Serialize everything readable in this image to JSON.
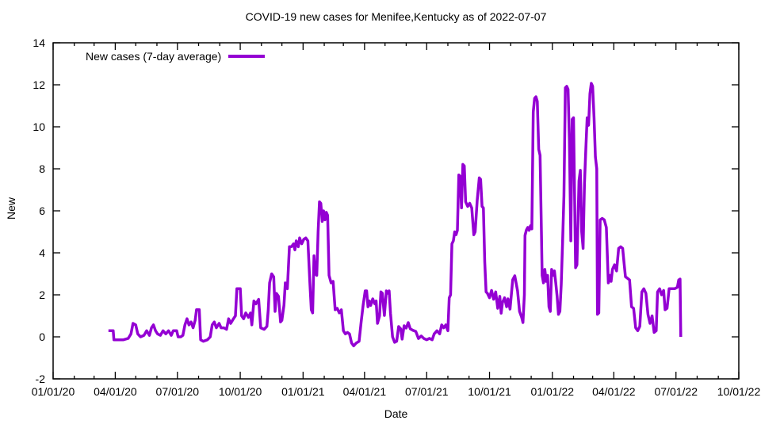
{
  "chart": {
    "title": "COVID-19 new cases for Menifee,Kentucky as of 2022-07-07",
    "xlabel": "Date",
    "ylabel": "New",
    "legend_label": "New cases (7-day average)"
  },
  "chart_data": {
    "type": "line",
    "title": "COVID-19 new cases for Menifee,Kentucky as of 2022-07-07",
    "xlabel": "Date",
    "ylabel": "New",
    "legend_position": "top-left",
    "grid": false,
    "line_color": "#9400d3",
    "x_start_date": "2020-01-01",
    "x_end_date": "2022-10-01",
    "x_tick_labels": [
      "01/01/20",
      "04/01/20",
      "07/01/20",
      "10/01/20",
      "01/01/21",
      "04/01/21",
      "07/01/21",
      "10/01/21",
      "01/01/22",
      "04/01/22",
      "07/01/22",
      "10/01/22"
    ],
    "x_minor_tick_interval": "1 month",
    "y_ticks": [
      -2,
      0,
      2,
      4,
      6,
      8,
      10,
      12,
      14
    ],
    "ylim": [
      -2,
      14
    ],
    "series": [
      {
        "name": "New cases (7-day average)",
        "x_unit": "days since 2020-01-01",
        "points": [
          [
            81,
            0.29
          ],
          [
            88,
            0.29
          ],
          [
            89,
            -0.14
          ],
          [
            96,
            -0.14
          ],
          [
            103,
            -0.14
          ],
          [
            110,
            -0.07
          ],
          [
            114,
            0.14
          ],
          [
            117,
            0.64
          ],
          [
            121,
            0.57
          ],
          [
            124,
            0.14
          ],
          [
            128,
            0.0
          ],
          [
            133,
            0.07
          ],
          [
            137,
            0.29
          ],
          [
            141,
            0.07
          ],
          [
            144,
            0.43
          ],
          [
            147,
            0.57
          ],
          [
            150,
            0.29
          ],
          [
            153,
            0.14
          ],
          [
            157,
            0.07
          ],
          [
            161,
            0.29
          ],
          [
            165,
            0.14
          ],
          [
            169,
            0.29
          ],
          [
            173,
            0.07
          ],
          [
            176,
            0.29
          ],
          [
            181,
            0.29
          ],
          [
            183,
            0.0
          ],
          [
            187,
            0.0
          ],
          [
            190,
            0.07
          ],
          [
            193,
            0.57
          ],
          [
            196,
            0.86
          ],
          [
            199,
            0.57
          ],
          [
            202,
            0.71
          ],
          [
            205,
            0.43
          ],
          [
            208,
            0.79
          ],
          [
            210,
            1.29
          ],
          [
            214,
            1.29
          ],
          [
            216,
            -0.14
          ],
          [
            220,
            -0.21
          ],
          [
            226,
            -0.14
          ],
          [
            230,
            0.0
          ],
          [
            233,
            0.57
          ],
          [
            236,
            0.71
          ],
          [
            239,
            0.43
          ],
          [
            243,
            0.64
          ],
          [
            246,
            0.43
          ],
          [
            250,
            0.43
          ],
          [
            254,
            0.36
          ],
          [
            257,
            0.86
          ],
          [
            260,
            0.64
          ],
          [
            264,
            0.86
          ],
          [
            267,
            1.0
          ],
          [
            269,
            2.29
          ],
          [
            274,
            2.29
          ],
          [
            276,
            1.0
          ],
          [
            279,
            0.86
          ],
          [
            282,
            1.14
          ],
          [
            286,
            0.93
          ],
          [
            289,
            1.14
          ],
          [
            291,
            0.57
          ],
          [
            294,
            1.71
          ],
          [
            297,
            1.57
          ],
          [
            301,
            1.79
          ],
          [
            304,
            0.43
          ],
          [
            309,
            0.36
          ],
          [
            313,
            0.5
          ],
          [
            315,
            1.29
          ],
          [
            317,
            2.57
          ],
          [
            320,
            3.0
          ],
          [
            323,
            2.86
          ],
          [
            325,
            1.21
          ],
          [
            327,
            2.07
          ],
          [
            330,
            1.93
          ],
          [
            333,
            0.71
          ],
          [
            335,
            0.79
          ],
          [
            338,
            1.5
          ],
          [
            340,
            2.57
          ],
          [
            343,
            2.29
          ],
          [
            346,
            4.29
          ],
          [
            349,
            4.29
          ],
          [
            352,
            4.43
          ],
          [
            354,
            4.14
          ],
          [
            356,
            4.57
          ],
          [
            359,
            4.29
          ],
          [
            361,
            4.71
          ],
          [
            364,
            4.43
          ],
          [
            367,
            4.64
          ],
          [
            370,
            4.71
          ],
          [
            373,
            4.57
          ],
          [
            376,
            2.57
          ],
          [
            378,
            1.29
          ],
          [
            380,
            1.14
          ],
          [
            382,
            3.86
          ],
          [
            384,
            3.0
          ],
          [
            386,
            2.93
          ],
          [
            388,
            5.0
          ],
          [
            390,
            6.43
          ],
          [
            392,
            6.36
          ],
          [
            394,
            5.5
          ],
          [
            396,
            6.0
          ],
          [
            398,
            5.57
          ],
          [
            400,
            5.93
          ],
          [
            402,
            5.79
          ],
          [
            404,
            2.93
          ],
          [
            407,
            2.57
          ],
          [
            410,
            2.64
          ],
          [
            413,
            1.29
          ],
          [
            416,
            1.36
          ],
          [
            419,
            1.14
          ],
          [
            422,
            1.29
          ],
          [
            425,
            0.29
          ],
          [
            428,
            0.14
          ],
          [
            431,
            0.21
          ],
          [
            434,
            0.14
          ],
          [
            437,
            -0.29
          ],
          [
            440,
            -0.43
          ],
          [
            444,
            -0.29
          ],
          [
            448,
            -0.21
          ],
          [
            451,
            0.71
          ],
          [
            454,
            1.51
          ],
          [
            457,
            2.19
          ],
          [
            459,
            2.19
          ],
          [
            461,
            1.43
          ],
          [
            463,
            1.71
          ],
          [
            465,
            1.5
          ],
          [
            468,
            1.81
          ],
          [
            471,
            1.57
          ],
          [
            473,
            1.71
          ],
          [
            475,
            0.64
          ],
          [
            478,
            1.0
          ],
          [
            480,
            2.14
          ],
          [
            482,
            2.08
          ],
          [
            485,
            1.02
          ],
          [
            488,
            2.19
          ],
          [
            490,
            2.08
          ],
          [
            492,
            2.19
          ],
          [
            494,
            1.13
          ],
          [
            497,
            0.0
          ],
          [
            500,
            -0.26
          ],
          [
            503,
            -0.21
          ],
          [
            506,
            0.49
          ],
          [
            509,
            0.38
          ],
          [
            511,
            -0.11
          ],
          [
            514,
            0.53
          ],
          [
            517,
            0.42
          ],
          [
            520,
            0.68
          ],
          [
            523,
            0.38
          ],
          [
            527,
            0.31
          ],
          [
            531,
            0.26
          ],
          [
            535,
            -0.08
          ],
          [
            539,
            0.04
          ],
          [
            543,
            -0.08
          ],
          [
            547,
            -0.14
          ],
          [
            551,
            -0.07
          ],
          [
            555,
            -0.14
          ],
          [
            558,
            0.14
          ],
          [
            562,
            0.29
          ],
          [
            566,
            0.14
          ],
          [
            569,
            0.57
          ],
          [
            572,
            0.43
          ],
          [
            575,
            0.57
          ],
          [
            578,
            0.29
          ],
          [
            580,
            1.86
          ],
          [
            582,
            2.0
          ],
          [
            584,
            4.43
          ],
          [
            586,
            4.57
          ],
          [
            588,
            5.0
          ],
          [
            590,
            4.86
          ],
          [
            592,
            5.07
          ],
          [
            594,
            7.71
          ],
          [
            596,
            7.64
          ],
          [
            598,
            6.14
          ],
          [
            600,
            8.21
          ],
          [
            602,
            8.14
          ],
          [
            604,
            6.43
          ],
          [
            607,
            6.21
          ],
          [
            610,
            6.36
          ],
          [
            613,
            6.14
          ],
          [
            616,
            4.86
          ],
          [
            618,
            5.0
          ],
          [
            621,
            6.5
          ],
          [
            624,
            7.57
          ],
          [
            626,
            7.5
          ],
          [
            628,
            6.21
          ],
          [
            630,
            6.14
          ],
          [
            632,
            3.57
          ],
          [
            634,
            2.14
          ],
          [
            636,
            2.07
          ],
          [
            639,
            1.86
          ],
          [
            642,
            2.21
          ],
          [
            645,
            1.79
          ],
          [
            648,
            2.14
          ],
          [
            651,
            1.36
          ],
          [
            654,
            1.93
          ],
          [
            656,
            1.13
          ],
          [
            658,
            1.64
          ],
          [
            661,
            1.86
          ],
          [
            664,
            1.43
          ],
          [
            666,
            1.81
          ],
          [
            669,
            1.32
          ],
          [
            673,
            2.72
          ],
          [
            676,
            2.91
          ],
          [
            680,
            2.19
          ],
          [
            683,
            1.21
          ],
          [
            686,
            0.94
          ],
          [
            688,
            0.68
          ],
          [
            690,
            2.0
          ],
          [
            691,
            4.83
          ],
          [
            693,
            5.09
          ],
          [
            695,
            5.21
          ],
          [
            697,
            5.07
          ],
          [
            699,
            5.29
          ],
          [
            701,
            5.14
          ],
          [
            703,
            10.71
          ],
          [
            705,
            11.36
          ],
          [
            707,
            11.43
          ],
          [
            709,
            11.21
          ],
          [
            711,
            8.93
          ],
          [
            713,
            8.64
          ],
          [
            715,
            5.0
          ],
          [
            716,
            2.93
          ],
          [
            718,
            2.57
          ],
          [
            720,
            3.21
          ],
          [
            722,
            2.64
          ],
          [
            724,
            2.93
          ],
          [
            726,
            1.43
          ],
          [
            728,
            1.21
          ],
          [
            730,
            3.21
          ],
          [
            732,
            2.93
          ],
          [
            734,
            3.14
          ],
          [
            736,
            2.57
          ],
          [
            738,
            1.93
          ],
          [
            740,
            1.07
          ],
          [
            742,
            1.21
          ],
          [
            744,
            2.5
          ],
          [
            746,
            4.5
          ],
          [
            748,
            6.71
          ],
          [
            750,
            11.86
          ],
          [
            752,
            11.93
          ],
          [
            754,
            11.79
          ],
          [
            756,
            9.36
          ],
          [
            758,
            4.57
          ],
          [
            760,
            10.36
          ],
          [
            762,
            10.43
          ],
          [
            765,
            3.29
          ],
          [
            767,
            3.43
          ],
          [
            770,
            7.43
          ],
          [
            772,
            7.93
          ],
          [
            774,
            5.0
          ],
          [
            776,
            4.21
          ],
          [
            778,
            7.29
          ],
          [
            780,
            8.93
          ],
          [
            782,
            10.43
          ],
          [
            784,
            10.07
          ],
          [
            786,
            11.57
          ],
          [
            788,
            12.07
          ],
          [
            790,
            11.93
          ],
          [
            792,
            10.43
          ],
          [
            794,
            8.57
          ],
          [
            796,
            8.0
          ],
          [
            797,
            1.07
          ],
          [
            799,
            1.14
          ],
          [
            801,
            5.57
          ],
          [
            804,
            5.64
          ],
          [
            807,
            5.57
          ],
          [
            810,
            5.21
          ],
          [
            813,
            2.57
          ],
          [
            815,
            2.93
          ],
          [
            817,
            2.64
          ],
          [
            819,
            3.21
          ],
          [
            822,
            3.43
          ],
          [
            825,
            3.14
          ],
          [
            828,
            4.21
          ],
          [
            831,
            4.29
          ],
          [
            834,
            4.21
          ],
          [
            836,
            3.5
          ],
          [
            838,
            2.86
          ],
          [
            841,
            2.79
          ],
          [
            844,
            2.71
          ],
          [
            847,
            1.43
          ],
          [
            850,
            1.36
          ],
          [
            853,
            0.43
          ],
          [
            856,
            0.29
          ],
          [
            859,
            0.5
          ],
          [
            862,
            2.14
          ],
          [
            865,
            2.29
          ],
          [
            868,
            2.07
          ],
          [
            871,
            1.07
          ],
          [
            874,
            0.64
          ],
          [
            877,
            1.0
          ],
          [
            880,
            0.21
          ],
          [
            883,
            0.29
          ],
          [
            885,
            2.14
          ],
          [
            888,
            2.29
          ],
          [
            891,
            2.0
          ],
          [
            894,
            2.21
          ],
          [
            896,
            1.29
          ],
          [
            899,
            1.36
          ],
          [
            902,
            2.29
          ],
          [
            906,
            2.29
          ],
          [
            910,
            2.29
          ],
          [
            914,
            2.36
          ],
          [
            916,
            2.71
          ],
          [
            918,
            2.75
          ],
          [
            919,
            0.0
          ]
        ]
      }
    ]
  }
}
